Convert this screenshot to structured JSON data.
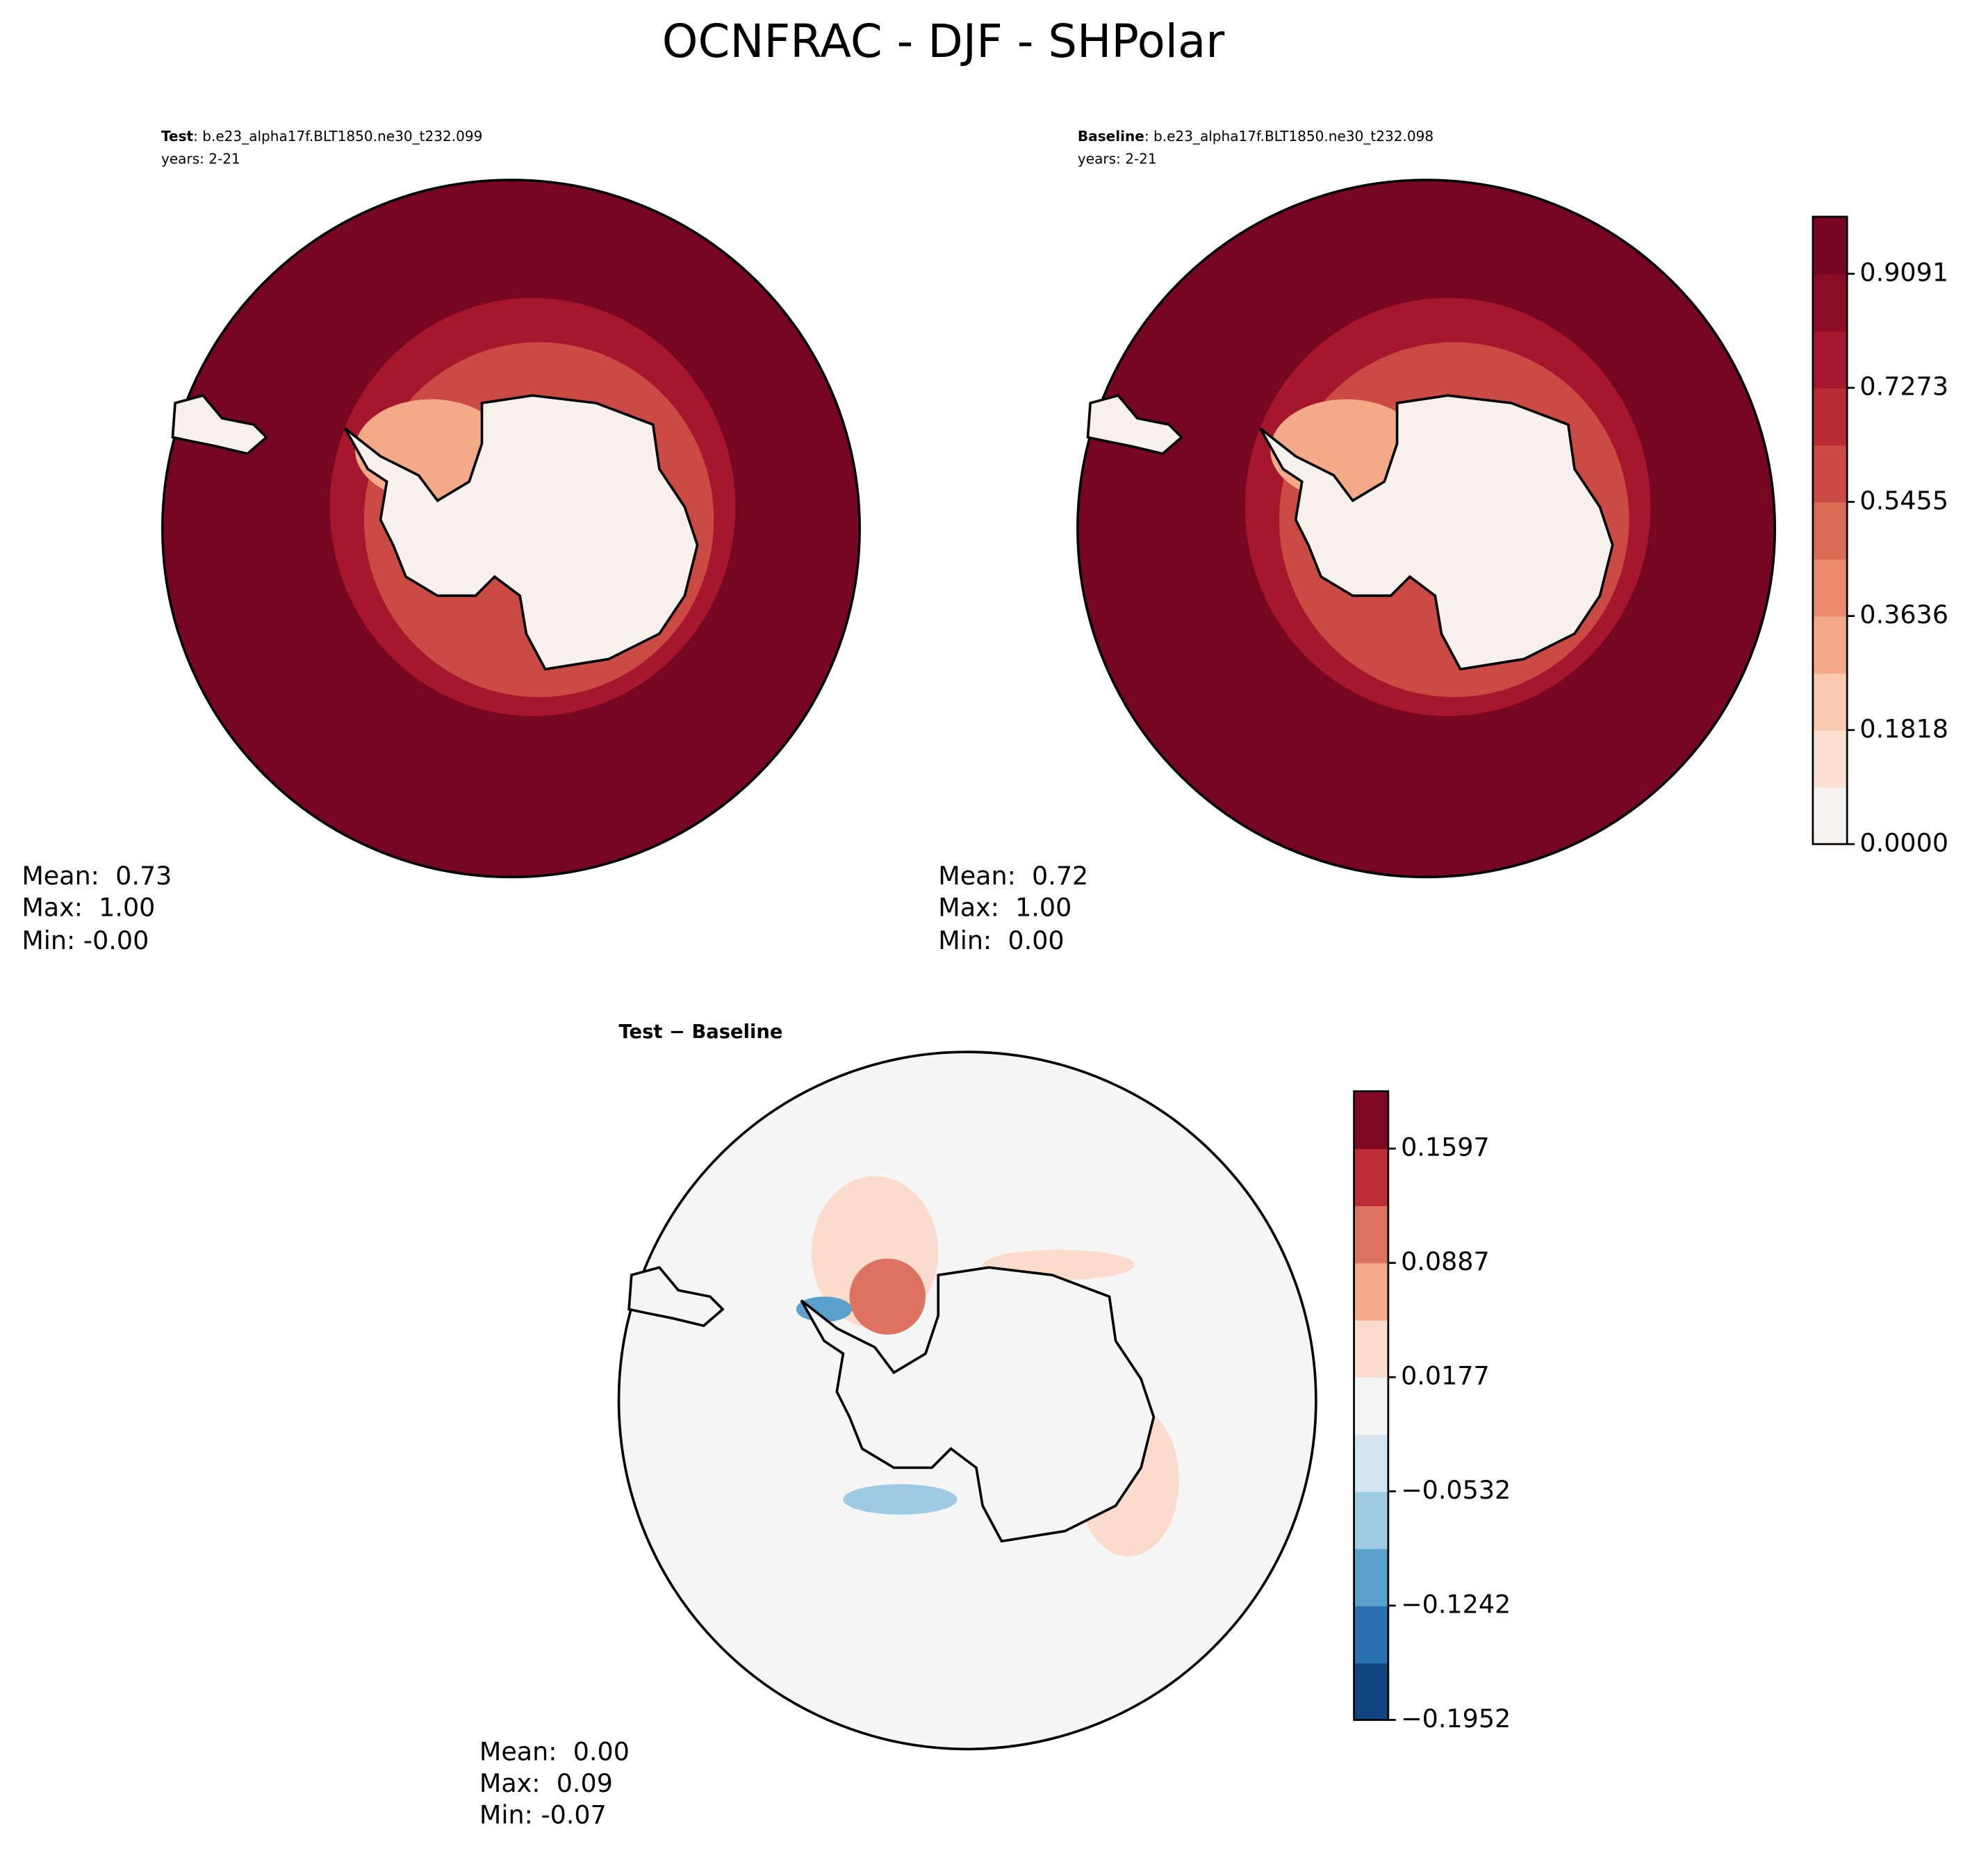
{
  "title": "OCNFRAC - DJF - SHPolar",
  "panels": [
    {
      "label": "Test",
      "case": ": b.e23_alpha17f.BLT1850.ne30_t232.099",
      "years": "years: 2-21",
      "stats": [
        "Mean:  0.73",
        "Max:  1.00",
        "Min: -0.00"
      ]
    },
    {
      "label": "Baseline",
      "case": ": b.e23_alpha17f.BLT1850.ne30_t232.098",
      "years": "years: 2-21",
      "stats": [
        "Mean:  0.72",
        "Max:  1.00",
        "Min:  0.00"
      ]
    },
    {
      "label": "Test − Baseline",
      "stats": [
        "Mean:  0.00",
        "Max:  0.09",
        "Min: -0.07"
      ]
    }
  ],
  "colorbars": [
    {
      "lim": [
        0,
        1
      ],
      "ticks": [
        {
          "value": 0,
          "label": "0.0000"
        },
        0.1818,
        0.3636,
        0.5455,
        0.7273,
        0.9091
      ],
      "colors": [
        "#f7f3f0",
        "#fce1d3",
        "#f9c8b0",
        "#f4aa88",
        "#e98a6d",
        "#db6b55",
        "#cb4a43",
        "#b92b34",
        "#a6172d",
        "#8a0c27",
        "#770622"
      ]
    },
    {
      "lim": [
        -0.1952,
        0.1953
      ],
      "ticks": [
        {
          "value": -0.1952,
          "label": "−0.1952"
        },
        {
          "value": -0.1242,
          "label": "−0.1242"
        },
        {
          "value": -0.0532,
          "label": "−0.0532"
        },
        0.0177,
        0.0887,
        0.1597
      ],
      "colors": [
        "#10457f",
        "#2a71b2",
        "#5aa2cc",
        "#9ecbe2",
        "#d4e6f1",
        "#f5f5f5",
        "#fbdbcb",
        "#f5aa89",
        "#de7260",
        "#bd2d37",
        "#7f0823"
      ]
    }
  ]
}
